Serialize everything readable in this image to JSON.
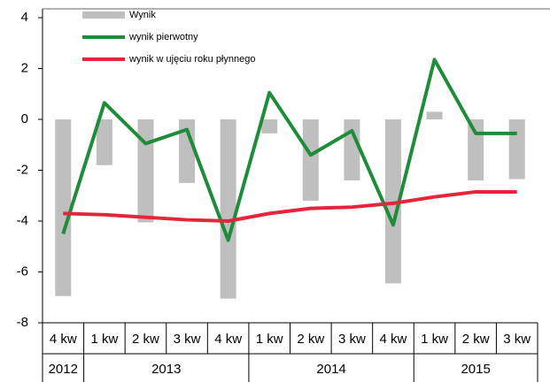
{
  "chart_data": {
    "type": "bar_line",
    "categories": [
      "4 kw",
      "1 kw",
      "2 kw",
      "3 kw",
      "4 kw",
      "1 kw",
      "2 kw",
      "3 kw",
      "4 kw",
      "1 kw",
      "2 kw",
      "3 kw"
    ],
    "year_groups": [
      {
        "label": "2012",
        "count": 1
      },
      {
        "label": "2013",
        "count": 4
      },
      {
        "label": "2014",
        "count": 4
      },
      {
        "label": "2015",
        "count": 3
      }
    ],
    "series": [
      {
        "name": "Wynik",
        "kind": "bar",
        "color": "#bfbfbf",
        "values": [
          -6.95,
          -1.8,
          -4.05,
          -2.5,
          -7.05,
          -0.55,
          -3.2,
          -2.4,
          -6.45,
          0.3,
          -2.4,
          -2.35
        ]
      },
      {
        "name": "wynik pierwotny",
        "kind": "line",
        "color": "#1e8c3a",
        "values": [
          -4.5,
          0.65,
          -0.95,
          -0.4,
          -4.75,
          1.05,
          -1.4,
          -0.45,
          -4.15,
          2.35,
          -0.55,
          -0.55
        ]
      },
      {
        "name": "wynik w ujęciu roku płynnego",
        "kind": "line",
        "color": "#e3263a",
        "values": [
          -3.7,
          -3.75,
          -3.85,
          -3.95,
          -4.0,
          -3.7,
          -3.5,
          -3.45,
          -3.3,
          -3.05,
          -2.85,
          -2.85
        ]
      }
    ],
    "ylim": [
      -8,
      4
    ],
    "yticks": [
      -8,
      -6,
      -4,
      -2,
      0,
      2,
      4
    ]
  }
}
